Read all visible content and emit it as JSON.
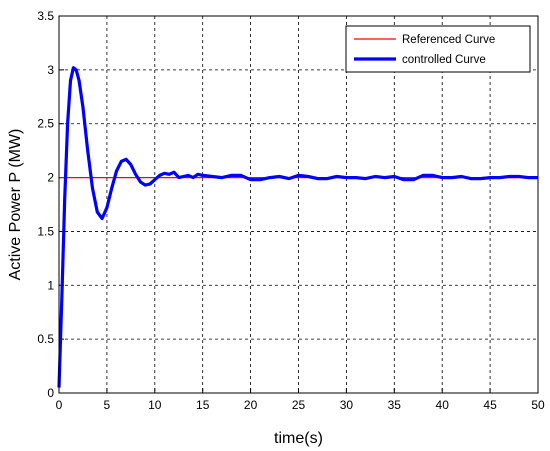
{
  "chart_data": {
    "type": "line",
    "xlabel": "time(s)",
    "ylabel": "Active Power P (MW)",
    "xlim": [
      0,
      50
    ],
    "ylim": [
      0,
      3.5
    ],
    "x_ticks": [
      "0",
      "5",
      "10",
      "15",
      "20",
      "25",
      "30",
      "35",
      "40",
      "45",
      "50"
    ],
    "y_ticks": [
      "0",
      "0.5",
      "1",
      "1.5",
      "2",
      "2.5",
      "3",
      "3.5"
    ],
    "grid": true,
    "legend_position": "top-right",
    "series": [
      {
        "name": "Referenced Curve",
        "color": "#ff0000",
        "x": [
          0,
          50
        ],
        "y": [
          2,
          2
        ]
      },
      {
        "name": "controlled Curve",
        "color": "#0000ff",
        "x": [
          0,
          0.3,
          0.6,
          0.9,
          1.2,
          1.5,
          1.8,
          2.1,
          2.5,
          3.0,
          3.5,
          4.0,
          4.5,
          5.0,
          5.5,
          6.0,
          6.5,
          7.0,
          7.5,
          8.0,
          8.5,
          9.0,
          9.5,
          10.0,
          10.5,
          11.0,
          11.5,
          12.0,
          12.5,
          13.0,
          13.5,
          14.0,
          14.5,
          15.0,
          16.0,
          17.0,
          18.0,
          19.0,
          20.0,
          21.0,
          22.0,
          23.0,
          24.0,
          25.0,
          26.0,
          27.0,
          28.0,
          29.0,
          30.0,
          31.0,
          32.0,
          33.0,
          34.0,
          35.0,
          36.0,
          37.0,
          38.0,
          39.0,
          40.0,
          41.0,
          42.0,
          43.0,
          44.0,
          45.0,
          46.0,
          47.0,
          48.0,
          49.0,
          50.0
        ],
        "y": [
          0.05,
          0.9,
          1.8,
          2.5,
          2.9,
          3.02,
          3.0,
          2.9,
          2.65,
          2.25,
          1.9,
          1.68,
          1.62,
          1.72,
          1.9,
          2.06,
          2.15,
          2.17,
          2.12,
          2.03,
          1.96,
          1.93,
          1.94,
          1.98,
          2.02,
          2.04,
          2.03,
          2.05,
          2.0,
          2.01,
          2.02,
          2.0,
          2.03,
          2.02,
          2.01,
          2.0,
          2.02,
          2.02,
          1.98,
          1.98,
          2.0,
          2.01,
          1.99,
          2.02,
          2.01,
          1.99,
          1.99,
          2.01,
          2.0,
          2.0,
          1.99,
          2.01,
          2.0,
          2.01,
          1.98,
          1.98,
          2.02,
          2.02,
          2.0,
          2.0,
          2.01,
          1.99,
          1.99,
          2.0,
          2.0,
          2.01,
          2.01,
          2.0,
          2.0
        ]
      }
    ]
  }
}
